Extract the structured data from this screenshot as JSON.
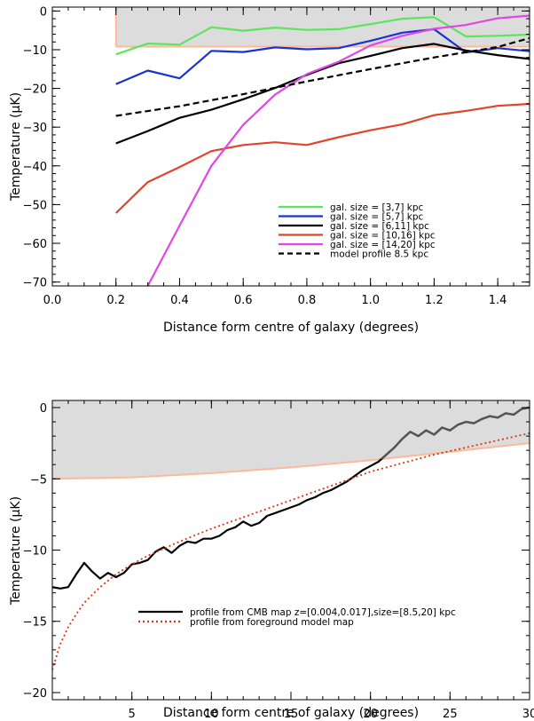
{
  "chart_data": [
    {
      "type": "line",
      "xlabel": "Distance form centre of galaxy (degrees)",
      "ylabel": "Temperature (μK)",
      "xlim": [
        0,
        1.5
      ],
      "ylim": [
        -71,
        1
      ],
      "x_ticks": [
        "0.0",
        "0.2",
        "0.4",
        "0.6",
        "0.8",
        "1.0",
        "1.2",
        "1.4"
      ],
      "y_ticks": [
        "0",
        "−10",
        "−20",
        "−30",
        "−40",
        "−50",
        "−60",
        "−70"
      ],
      "shaded_region": {
        "color": "#dcdcdc",
        "edge_color": "#ffb89a",
        "x": [
          0.2,
          1.5
        ],
        "upper": [
          1,
          1
        ],
        "lower": [
          -9.2,
          -9.2
        ]
      },
      "legend_position": "lower-right",
      "series": [
        {
          "name": "gal. size = [3,7] kpc",
          "color": "#5ae65a",
          "dashed": false,
          "x": [
            0.2,
            0.3,
            0.4,
            0.5,
            0.6,
            0.7,
            0.8,
            0.9,
            1.0,
            1.1,
            1.2,
            1.3,
            1.4,
            1.5
          ],
          "y": [
            -11.2,
            -8.4,
            -8.7,
            -4.2,
            -5.1,
            -4.3,
            -4.9,
            -4.7,
            -3.4,
            -2.0,
            -1.6,
            -6.6,
            -6.4,
            -6.1
          ]
        },
        {
          "name": "gal. size = [5,7] kpc",
          "color": "#1a32d4",
          "dashed": false,
          "x": [
            0.2,
            0.3,
            0.4,
            0.5,
            0.6,
            0.7,
            0.8,
            0.9,
            1.0,
            1.1,
            1.2,
            1.3,
            1.4,
            1.5
          ],
          "y": [
            -18.9,
            -15.4,
            -17.4,
            -10.3,
            -10.6,
            -9.4,
            -9.9,
            -9.6,
            -7.7,
            -5.6,
            -4.7,
            -10.7,
            -9.6,
            -10.4
          ]
        },
        {
          "name": "gal. size = [6,11] kpc",
          "color": "#000000",
          "dashed": false,
          "x": [
            0.2,
            0.3,
            0.4,
            0.5,
            0.6,
            0.7,
            0.8,
            0.9,
            1.0,
            1.1,
            1.2,
            1.3,
            1.4,
            1.5
          ],
          "y": [
            -34.2,
            -31.0,
            -27.6,
            -25.5,
            -22.8,
            -19.9,
            -16.5,
            -13.5,
            -11.6,
            -9.6,
            -8.5,
            -10.2,
            -11.4,
            -12.4
          ]
        },
        {
          "name": "gal. size = [10,16] kpc",
          "color": "#e0452a",
          "dashed": false,
          "x": [
            0.2,
            0.3,
            0.4,
            0.5,
            0.6,
            0.7,
            0.8,
            0.9,
            1.0,
            1.1,
            1.2,
            1.3,
            1.4,
            1.5
          ],
          "y": [
            -52.2,
            -44.2,
            -40.3,
            -36.2,
            -34.6,
            -33.9,
            -34.6,
            -32.6,
            -30.8,
            -29.3,
            -26.9,
            -25.8,
            -24.5,
            -24.0
          ]
        },
        {
          "name": "gal. size = [14,20] kpc",
          "color": "#e047e6",
          "dashed": false,
          "x": [
            0.3,
            0.4,
            0.5,
            0.6,
            0.7,
            0.8,
            0.9,
            1.0,
            1.1,
            1.2,
            1.3,
            1.4,
            1.5
          ],
          "y": [
            -71.0,
            -55.4,
            -40.0,
            -29.4,
            -21.6,
            -16.3,
            -13.1,
            -8.9,
            -6.4,
            -4.6,
            -3.6,
            -1.9,
            -1.2
          ]
        },
        {
          "name": "model profile 8.5 kpc",
          "color": "#000000",
          "dashed": true,
          "x": [
            0.2,
            0.4,
            0.6,
            0.8,
            1.0,
            1.2,
            1.4,
            1.5
          ],
          "y": [
            -27.1,
            -24.6,
            -21.5,
            -18.2,
            -15.0,
            -12.0,
            -9.3,
            -7.0
          ]
        }
      ]
    },
    {
      "type": "line",
      "xlabel": "Distance form centre of galaxy (degrees)",
      "ylabel": "Temperature (μK)",
      "xlim": [
        0,
        30
      ],
      "ylim": [
        -20.5,
        0.5
      ],
      "x_ticks": [
        "5",
        "10",
        "15",
        "20",
        "25",
        "30"
      ],
      "y_ticks": [
        "0",
        "−5",
        "−10",
        "−15",
        "−20"
      ],
      "shaded_region": {
        "color": "#dcdcdc",
        "edge_color": "#ffb89a",
        "x": [
          0,
          5,
          10,
          15,
          20,
          25,
          30
        ],
        "upper": [
          0.5,
          0.5,
          0.5,
          0.5,
          0.5,
          0.5,
          0.5
        ],
        "lower": [
          -5.0,
          -4.9,
          -4.6,
          -4.2,
          -3.7,
          -3.1,
          -2.5
        ]
      },
      "legend_position": "lower-center",
      "series": [
        {
          "name": "profile from CMB map z=[0.004,0.017],size=[8.5,20] kpc",
          "color": "#000000",
          "dashed": false,
          "shaded_color": "#555555",
          "x": [
            0.0,
            0.5,
            1.0,
            1.5,
            2.0,
            2.5,
            3.0,
            3.5,
            4.0,
            4.5,
            5.0,
            5.5,
            6.0,
            6.5,
            7.0,
            7.5,
            8.0,
            8.5,
            9.0,
            9.5,
            10.0,
            10.5,
            11.0,
            11.5,
            12.0,
            12.5,
            13.0,
            13.5,
            14.0,
            14.5,
            15.0,
            15.5,
            16.0,
            16.5,
            17.0,
            17.5,
            18.0,
            18.5,
            19.0,
            19.5,
            20.0,
            20.5,
            21.0,
            21.5,
            22.0,
            22.5,
            23.0,
            23.5,
            24.0,
            24.5,
            25.0,
            25.5,
            26.0,
            26.5,
            27.0,
            27.5,
            28.0,
            28.5,
            29.0,
            29.5,
            30.0
          ],
          "y": [
            -12.6,
            -12.7,
            -12.6,
            -11.7,
            -10.9,
            -11.5,
            -12.0,
            -11.6,
            -11.9,
            -11.6,
            -11.0,
            -10.9,
            -10.7,
            -10.1,
            -9.8,
            -10.2,
            -9.7,
            -9.4,
            -9.5,
            -9.2,
            -9.2,
            -9.0,
            -8.6,
            -8.4,
            -8.0,
            -8.3,
            -8.1,
            -7.6,
            -7.4,
            -7.2,
            -7.0,
            -6.8,
            -6.5,
            -6.3,
            -6.0,
            -5.8,
            -5.5,
            -5.2,
            -4.8,
            -4.4,
            -4.1,
            -3.8,
            -3.3,
            -2.8,
            -2.2,
            -1.7,
            -2.0,
            -1.6,
            -1.9,
            -1.4,
            -1.6,
            -1.2,
            -1.0,
            -1.1,
            -0.8,
            -0.6,
            -0.7,
            -0.4,
            -0.5,
            -0.1,
            0.0
          ]
        },
        {
          "name": "profile from foreground model map",
          "color": "#dd3311",
          "dashed": true,
          "x": [
            0.0,
            0.5,
            1.0,
            1.5,
            2.0,
            3.0,
            4.0,
            5.0,
            6.0,
            8.0,
            10.0,
            12.0,
            14.0,
            16.0,
            18.0,
            20.0,
            22.0,
            24.0,
            26.0,
            28.0,
            30.0
          ],
          "y": [
            -18.4,
            -16.6,
            -15.4,
            -14.5,
            -13.7,
            -12.6,
            -11.7,
            -11.0,
            -10.4,
            -9.4,
            -8.5,
            -7.7,
            -6.9,
            -6.1,
            -5.3,
            -4.5,
            -3.9,
            -3.3,
            -2.8,
            -2.3,
            -1.8
          ]
        }
      ]
    }
  ]
}
